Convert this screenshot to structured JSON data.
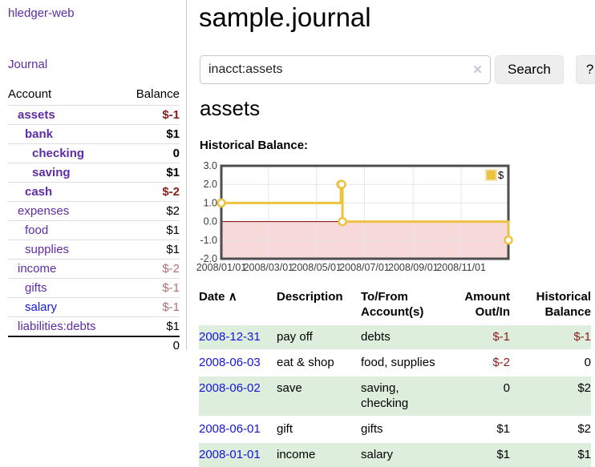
{
  "app": {
    "title": "hledger-web",
    "nav": {
      "journal": "Journal"
    }
  },
  "sidebar": {
    "columns": {
      "account": "Account",
      "balance": "Balance"
    },
    "accounts": [
      {
        "name": "assets",
        "indent": 0,
        "bold": true,
        "balance": "$-1",
        "neg": "strong"
      },
      {
        "name": "bank",
        "indent": 1,
        "bold": true,
        "balance": "$1",
        "neg": null
      },
      {
        "name": "checking",
        "indent": 2,
        "bold": true,
        "balance": "0",
        "neg": null
      },
      {
        "name": "saving",
        "indent": 2,
        "bold": true,
        "balance": "$1",
        "neg": null
      },
      {
        "name": "cash",
        "indent": 1,
        "bold": true,
        "balance": "$-2",
        "neg": "strong"
      },
      {
        "name": "expenses",
        "indent": 0,
        "bold": false,
        "balance": "$2",
        "neg": null
      },
      {
        "name": "food",
        "indent": 1,
        "bold": false,
        "balance": "$1",
        "neg": null
      },
      {
        "name": "supplies",
        "indent": 1,
        "bold": false,
        "balance": "$1",
        "neg": null
      },
      {
        "name": "income",
        "indent": 0,
        "bold": false,
        "balance": "$-2",
        "neg": "light"
      },
      {
        "name": "gifts",
        "indent": 1,
        "bold": false,
        "balance": "$-1",
        "neg": "light"
      },
      {
        "name": "salary",
        "indent": 1,
        "bold": false,
        "balance": "$-1",
        "neg": "light",
        "blue": true
      },
      {
        "name": "liabilities:debts",
        "indent": 0,
        "bold": false,
        "balance": "$1",
        "neg": null
      }
    ],
    "total": "0"
  },
  "header": {
    "title": "sample.journal"
  },
  "search": {
    "value": "inacct:assets",
    "clear_icon": "✕",
    "button": "Search",
    "help": "?"
  },
  "account_page": {
    "heading": "assets",
    "chart_title": "Historical Balance:"
  },
  "chart_data": {
    "type": "line",
    "step": true,
    "title": "Historical Balance",
    "legend": {
      "label": "$",
      "position": "top-right"
    },
    "series": [
      {
        "name": "$",
        "color": "#edc240",
        "points": [
          {
            "date": "2008-01-01",
            "day": 0,
            "value": 1
          },
          {
            "date": "2008-06-01",
            "day": 152,
            "value": 2
          },
          {
            "date": "2008-06-02",
            "day": 153,
            "value": 2
          },
          {
            "date": "2008-06-03",
            "day": 154,
            "value": 0
          },
          {
            "date": "2008-12-31",
            "day": 365,
            "value": -1
          }
        ]
      }
    ],
    "ylim": [
      -2,
      3
    ],
    "yticks": [
      {
        "label": "3.0",
        "value": 3
      },
      {
        "label": "2.0",
        "value": 2
      },
      {
        "label": "1.0",
        "value": 1
      },
      {
        "label": "0.0",
        "value": 0
      },
      {
        "label": "-1.0",
        "value": -1
      },
      {
        "label": "-2.0",
        "value": -2
      }
    ],
    "xlim_days": [
      0,
      365
    ],
    "xticks": [
      {
        "label": "2008/01/01",
        "day": 0
      },
      {
        "label": "2008/03/01",
        "day": 60
      },
      {
        "label": "2008/05/01",
        "day": 121
      },
      {
        "label": "2008/07/01",
        "day": 182
      },
      {
        "label": "2008/09/01",
        "day": 244
      },
      {
        "label": "2008/11/01",
        "day": 305
      }
    ],
    "grid": true,
    "grid_color": "#e6e6e6",
    "border_color": "#4d4d4d",
    "zero_line_color": "#800000",
    "negative_region": {
      "from": -2,
      "to": 0,
      "color": "#f8d9d9"
    }
  },
  "register": {
    "headers": {
      "date": "Date",
      "sort_arrow": "∧",
      "description": "Description",
      "accounts": "To/From Account(s)",
      "amount": "Amount Out/In",
      "balance": "Historical Balance"
    },
    "rows": [
      {
        "date": "2008-12-31",
        "description": "pay off",
        "accounts": "debts",
        "amount": "$-1",
        "amount_negative": true,
        "balance": "$-1",
        "balance_negative": true
      },
      {
        "date": "2008-06-03",
        "description": "eat & shop",
        "accounts": "food, supplies",
        "amount": "$-2",
        "amount_negative": true,
        "balance": "0",
        "balance_negative": false
      },
      {
        "date": "2008-06-02",
        "description": "save",
        "accounts": "saving, checking",
        "amount": "0",
        "amount_negative": false,
        "balance": "$2",
        "balance_negative": false
      },
      {
        "date": "2008-06-01",
        "description": "gift",
        "accounts": "gifts",
        "amount": "$1",
        "amount_negative": false,
        "balance": "$2",
        "balance_negative": false
      },
      {
        "date": "2008-01-01",
        "description": "income",
        "accounts": "salary",
        "amount": "$1",
        "amount_negative": false,
        "balance": "$1",
        "balance_negative": false
      }
    ]
  },
  "colors": {
    "link_purple": "#5e2ca5",
    "link_blue": "#1515d6",
    "negative_strong": "#8b1c1c",
    "negative_light": "#b46e6e",
    "row_green": "#ddeedd",
    "series_yellow": "#edc240",
    "zero_line": "#800000",
    "negative_region": "#f8d9d9"
  }
}
